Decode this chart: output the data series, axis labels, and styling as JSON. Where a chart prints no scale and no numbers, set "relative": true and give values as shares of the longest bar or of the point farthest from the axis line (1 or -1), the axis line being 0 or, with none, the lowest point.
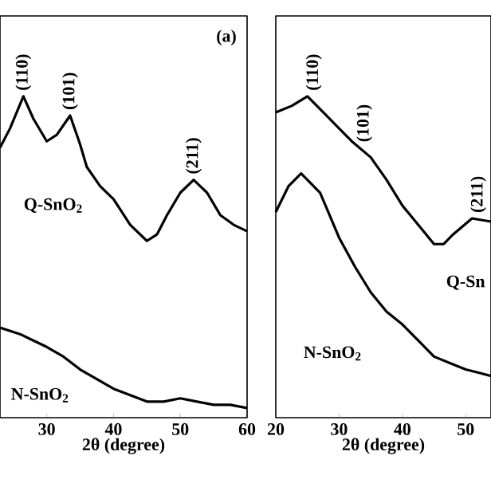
{
  "chart_data": [
    {
      "type": "line",
      "relative": true,
      "xlabel": "2θ (degree)",
      "xlim": [
        23,
        60
      ],
      "xticks": [
        30,
        40,
        50,
        60
      ],
      "series": [
        {
          "name": "Q-SnO$_{2}$",
          "color": "#000000",
          "x": [
            23,
            24.5,
            26.5,
            28,
            30,
            31.5,
            33.5,
            35,
            36,
            38,
            40,
            42.5,
            45,
            46.5,
            48,
            50,
            52,
            54,
            56,
            58,
            60
          ],
          "values": [
            0.84,
            0.9,
            1,
            0.93,
            0.86,
            0.88,
            0.94,
            0.85,
            0.78,
            0.72,
            0.68,
            0.6,
            0.55,
            0.57,
            0.63,
            0.7,
            0.74,
            0.7,
            0.63,
            0.6,
            0.58
          ]
        },
        {
          "name": "N-SnO$_{2}$",
          "color": "#000000",
          "x": [
            23,
            26,
            28,
            30,
            32.5,
            35,
            37.5,
            40,
            42.5,
            45,
            47.5,
            50,
            52.5,
            55,
            57.5,
            60
          ],
          "values": [
            0.28,
            0.26,
            0.24,
            0.22,
            0.19,
            0.15,
            0.12,
            0.09,
            0.07,
            0.05,
            0.05,
            0.06,
            0.05,
            0.04,
            0.04,
            0.03
          ]
        }
      ],
      "annotations": [
        {
          "text": "(110)",
          "x": 26.5,
          "y": 1
        },
        {
          "text": "(101)",
          "x": 33.5,
          "y": 0.94
        },
        {
          "text": "(211)",
          "x": 52,
          "y": 0.74
        },
        "(a)"
      ]
    },
    {
      "type": "line",
      "relative": true,
      "xlabel": "2θ (degree)",
      "xlim": [
        20,
        54
      ],
      "xticks": [
        20,
        30,
        40,
        50
      ],
      "series": [
        {
          "name": "Q-Sn",
          "color": "#000000",
          "x": [
            20,
            22.5,
            25,
            28,
            30,
            32,
            35,
            37.5,
            40,
            42.5,
            45,
            46.5,
            48,
            51,
            54
          ],
          "values": [
            0.95,
            0.97,
            1,
            0.94,
            0.9,
            0.86,
            0.81,
            0.74,
            0.66,
            0.6,
            0.54,
            0.54,
            0.57,
            0.62,
            0.61
          ]
        },
        {
          "name": "N-SnO$_{2}$",
          "color": "#000000",
          "x": [
            20,
            22,
            24,
            27,
            30,
            32.5,
            35,
            37.5,
            40,
            42.5,
            45,
            47.5,
            50,
            52,
            54
          ],
          "values": [
            0.64,
            0.72,
            0.76,
            0.7,
            0.56,
            0.47,
            0.39,
            0.33,
            0.29,
            0.24,
            0.19,
            0.17,
            0.15,
            0.14,
            0.13
          ]
        }
      ],
      "annotations": [
        {
          "text": "(110)",
          "x": 26,
          "y": 1
        },
        {
          "text": "(101)",
          "x": 34,
          "y": 0.84
        },
        {
          "text": "(211)",
          "x": 52,
          "y": 0.62
        }
      ]
    }
  ]
}
